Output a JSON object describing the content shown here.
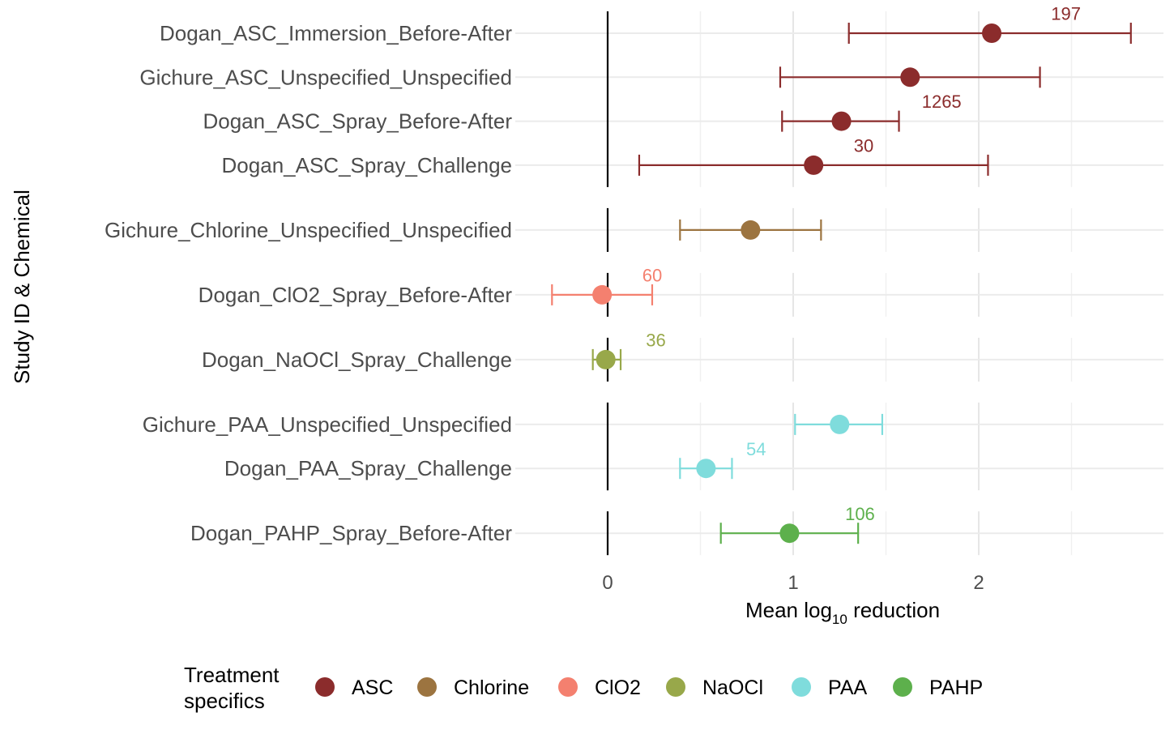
{
  "chart_data": {
    "type": "forest",
    "xlabel_main": "Mean log",
    "xlabel_sub": "10",
    "xlabel_tail": " reduction",
    "ylabel": "Study ID & Chemical",
    "xlim": [
      -0.4,
      2.9
    ],
    "xticks": [
      0,
      1,
      2
    ],
    "tick_labels": [
      "0",
      "1",
      "2"
    ],
    "grid": true,
    "zero_line": 0,
    "legend": {
      "position": "bottom",
      "title_line1": "Treatment",
      "title_line2": "specifics",
      "items": [
        {
          "name": "ASC",
          "color": "#8B2C2C"
        },
        {
          "name": "Chlorine",
          "color": "#9C7440"
        },
        {
          "name": "ClO2",
          "color": "#F4806F"
        },
        {
          "name": "NaOCl",
          "color": "#98A84A"
        },
        {
          "name": "PAA",
          "color": "#7FDCDC"
        },
        {
          "name": "PAHP",
          "color": "#5DB04C"
        }
      ]
    },
    "groups": [
      {
        "chemical": "ASC",
        "color": "#8B2C2C",
        "rows": [
          {
            "label": "Dogan_ASC_Immersion_Before-After",
            "mean": 2.07,
            "lower": 1.3,
            "upper": 2.82,
            "n": "197",
            "n_x": 2.47,
            "n_dy": -0.45
          },
          {
            "label": "Gichure_ASC_Unspecified_Unspecified",
            "mean": 1.63,
            "lower": 0.93,
            "upper": 2.33,
            "n": "",
            "n_x": 0,
            "n_dy": 0
          },
          {
            "label": "Dogan_ASC_Spray_Before-After",
            "mean": 1.26,
            "lower": 0.94,
            "upper": 1.57,
            "n": "1265",
            "n_x": 1.8,
            "n_dy": -0.45
          },
          {
            "label": "Dogan_ASC_Spray_Challenge",
            "mean": 1.11,
            "lower": 0.17,
            "upper": 2.05,
            "n": "30",
            "n_x": 1.38,
            "n_dy": -0.45
          }
        ]
      },
      {
        "chemical": "Chlorine",
        "color": "#9C7440",
        "rows": [
          {
            "label": "Gichure_Chlorine_Unspecified_Unspecified",
            "mean": 0.77,
            "lower": 0.39,
            "upper": 1.15,
            "n": "",
            "n_x": 0,
            "n_dy": 0
          }
        ]
      },
      {
        "chemical": "ClO2",
        "color": "#F4806F",
        "rows": [
          {
            "label": "Dogan_ClO2_Spray_Before-After",
            "mean": -0.03,
            "lower": -0.3,
            "upper": 0.24,
            "n": "60",
            "n_x": 0.24,
            "n_dy": -0.45
          }
        ]
      },
      {
        "chemical": "NaOCl",
        "color": "#98A84A",
        "rows": [
          {
            "label": "Dogan_NaOCl_Spray_Challenge",
            "mean": -0.01,
            "lower": -0.08,
            "upper": 0.07,
            "n": "36",
            "n_x": 0.26,
            "n_dy": -0.45
          }
        ]
      },
      {
        "chemical": "PAA",
        "color": "#7FDCDC",
        "rows": [
          {
            "label": "Gichure_PAA_Unspecified_Unspecified",
            "mean": 1.25,
            "lower": 1.01,
            "upper": 1.48,
            "n": "",
            "n_x": 0,
            "n_dy": 0
          },
          {
            "label": "Dogan_PAA_Spray_Challenge",
            "mean": 0.53,
            "lower": 0.39,
            "upper": 0.67,
            "n": "54",
            "n_x": 0.8,
            "n_dy": -0.45
          }
        ]
      },
      {
        "chemical": "PAHP",
        "color": "#5DB04C",
        "rows": [
          {
            "label": "Dogan_PAHP_Spray_Before-After",
            "mean": 0.98,
            "lower": 0.61,
            "upper": 1.35,
            "n": "106",
            "n_x": 1.36,
            "n_dy": -0.45
          }
        ]
      }
    ]
  }
}
